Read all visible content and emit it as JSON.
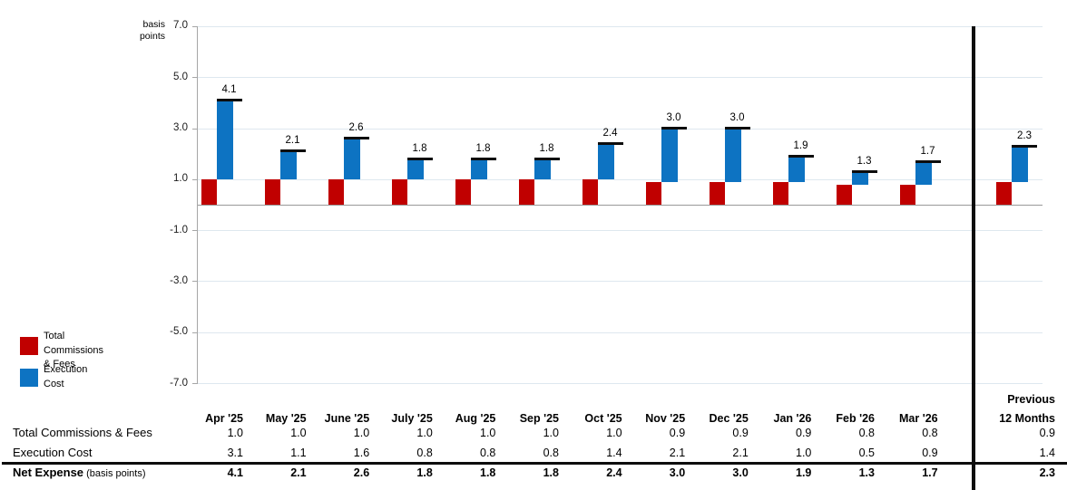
{
  "chart": {
    "y_axis": {
      "unit_label": "basis\npoints",
      "ticks": [
        7.0,
        5.0,
        3.0,
        1.0,
        -1.0,
        -3.0,
        -5.0,
        -7.0
      ]
    },
    "legend": {
      "items": [
        {
          "label": "Total Commissions\n& Fees",
          "color": "#C00000"
        },
        {
          "label": "Execution\nCost",
          "color": "#0D73C2"
        }
      ]
    },
    "net_marker_color": "#0d0d0d"
  },
  "chart_data": {
    "type": "bar",
    "subtype": "stacked-waterfall",
    "title": "",
    "ylabel": "basis points",
    "ylim": [
      -7.0,
      7.0
    ],
    "ytick_interval": 2.0,
    "grid": "horizontal",
    "legend_position": "bottom-left",
    "categories": [
      "Apr '25",
      "May '25",
      "June '25",
      "July '25",
      "Aug '25",
      "Sep '25",
      "Oct '25",
      "Nov '25",
      "Dec '25",
      "Jan '26",
      "Feb '26",
      "Mar '26",
      "Previous 12 Months"
    ],
    "series": [
      {
        "name": "Total Commissions & Fees",
        "color": "#C00000",
        "values": [
          1.0,
          1.0,
          1.0,
          1.0,
          1.0,
          1.0,
          1.0,
          0.9,
          0.9,
          0.9,
          0.8,
          0.8,
          0.9
        ]
      },
      {
        "name": "Execution Cost",
        "color": "#0D73C2",
        "values": [
          3.1,
          1.1,
          1.6,
          0.8,
          0.8,
          0.8,
          1.4,
          2.1,
          2.1,
          1.0,
          0.5,
          0.9,
          1.4
        ]
      }
    ],
    "net_totals": [
      4.1,
      2.1,
      2.6,
      1.8,
      1.8,
      1.8,
      2.4,
      3.0,
      3.0,
      1.9,
      1.3,
      1.7,
      2.3
    ],
    "net_total_name": "Net Expense (basis points)",
    "separator_before_category": "Previous 12 Months"
  },
  "table": {
    "previous_header_lines": [
      "Previous",
      "12 Months"
    ],
    "row_labels": [
      {
        "label": "Total Commissions & Fees",
        "bold": false,
        "suffix": ""
      },
      {
        "label": "Execution Cost",
        "bold": false,
        "suffix": ""
      },
      {
        "label": "Net Expense",
        "bold": true,
        "suffix": " (basis points)"
      }
    ]
  }
}
